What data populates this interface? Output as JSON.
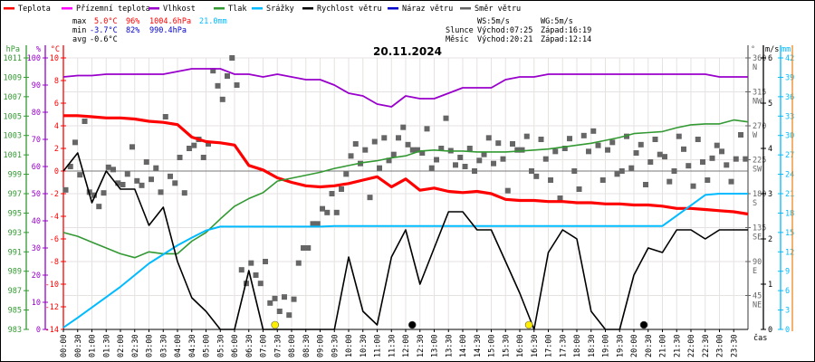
{
  "legend": [
    {
      "label": "Teplota",
      "color": "#ff0000"
    },
    {
      "label": "Přízemní teplota",
      "color": "#ff00ff"
    },
    {
      "label": "Vlhkost",
      "color": "#9900cc"
    },
    {
      "label": "Tlak",
      "color": "#339933"
    },
    {
      "label": "Srážky",
      "color": "#00bbff"
    },
    {
      "label": "Rychlost větru",
      "color": "#000000"
    },
    {
      "label": "Náraz větru",
      "color": "#0000cc"
    },
    {
      "label": "Směr větru",
      "color": "#666666"
    }
  ],
  "stats": {
    "max_label": "max",
    "max_temp": "5.0°C",
    "max_hum": "96%",
    "max_press": "1004.6hPa",
    "max_rain": "21.0mm",
    "min_label": "min",
    "min_temp": "-3.7°C",
    "min_hum": "82%",
    "min_press": "990.4hPa",
    "avg_label": "avg",
    "avg_temp": "-0.6°C"
  },
  "astro": {
    "ws": "WS:5m/s",
    "wg": "WG:5m/s",
    "sun_label": "Slunce",
    "sunrise": "Východ:07:25",
    "sunset": "Západ:16:19",
    "moon_label": "Měsíc",
    "moonrise": "Východ:20:21",
    "moonset": "Západ:12:14"
  },
  "chart_data": {
    "type": "line",
    "title": "20.11.2024",
    "xlabel": "čas",
    "x_ticks": [
      "00:00",
      "00:30",
      "01:00",
      "01:30",
      "02:00",
      "02:30",
      "03:00",
      "03:30",
      "04:00",
      "04:30",
      "05:00",
      "05:30",
      "06:00",
      "06:30",
      "07:00",
      "07:30",
      "08:00",
      "08:30",
      "09:00",
      "09:30",
      "10:00",
      "10:30",
      "11:00",
      "11:30",
      "12:00",
      "12:30",
      "13:00",
      "13:30",
      "14:00",
      "14:30",
      "15:00",
      "15:30",
      "16:00",
      "16:30",
      "17:00",
      "17:30",
      "18:00",
      "18:30",
      "19:00",
      "19:30",
      "20:00",
      "20:30",
      "21:00",
      "21:30",
      "22:00",
      "22:30",
      "23:00",
      "23:30"
    ],
    "axes": {
      "pressure": {
        "unit": "hPa",
        "range": [
          983,
          1011
        ],
        "ticks": [
          1011,
          1009,
          1007,
          1005,
          1003,
          1001,
          999,
          997,
          995,
          993,
          991,
          989,
          987,
          985,
          983
        ]
      },
      "humidity": {
        "unit": "%",
        "range": [
          0,
          100
        ],
        "ticks": [
          100,
          90,
          80,
          70,
          60,
          50,
          40,
          30,
          20,
          10,
          0
        ]
      },
      "temperature": {
        "unit": "°C",
        "range": [
          -14,
          10
        ],
        "ticks": [
          10,
          8,
          6,
          4,
          2,
          0,
          -2,
          -4,
          -6,
          -8,
          -10,
          -12,
          -14
        ]
      },
      "direction": {
        "unit": "°",
        "range": [
          0,
          360
        ],
        "ticks": [
          {
            "v": 360,
            "l": "N"
          },
          {
            "v": 315,
            "l": "NW"
          },
          {
            "v": 270,
            "l": "W"
          },
          {
            "v": 225,
            "l": "SW"
          },
          {
            "v": 180,
            "l": "S"
          },
          {
            "v": 135,
            "l": "SE"
          },
          {
            "v": 90,
            "l": "E"
          },
          {
            "v": 45,
            "l": "NE"
          }
        ]
      },
      "wind": {
        "unit": "m/s",
        "range": [
          0,
          6
        ],
        "ticks": [
          6,
          5,
          4,
          3,
          2,
          1,
          0
        ]
      },
      "rain": {
        "unit": "mm",
        "range": [
          0,
          42
        ],
        "ticks": [
          42,
          39,
          36,
          33,
          30,
          27,
          24,
          21,
          18,
          15,
          12,
          9,
          6,
          3,
          0
        ]
      }
    },
    "x_hours": [
      0,
      0.5,
      1,
      1.5,
      2,
      2.5,
      3,
      3.5,
      4,
      4.5,
      5,
      5.5,
      6,
      6.5,
      7,
      7.5,
      8,
      8.5,
      9,
      9.5,
      10,
      10.5,
      11,
      11.5,
      12,
      12.5,
      13,
      13.5,
      14,
      14.5,
      15,
      15.5,
      16,
      16.5,
      17,
      17.5,
      18,
      18.5,
      19,
      19.5,
      20,
      20.5,
      21,
      21.5,
      22,
      22.5,
      23,
      23.5,
      24
    ],
    "series": [
      {
        "name": "Teplota",
        "axis": "temperature",
        "color": "#ff0000",
        "values": [
          4.9,
          4.9,
          4.8,
          4.7,
          4.7,
          4.6,
          4.4,
          4.3,
          4.1,
          3.0,
          2.6,
          2.5,
          2.3,
          0.5,
          0.1,
          -0.6,
          -1.0,
          -1.3,
          -1.4,
          -1.3,
          -1.1,
          -0.8,
          -0.5,
          -1.4,
          -0.7,
          -1.7,
          -1.5,
          -1.8,
          -1.9,
          -1.8,
          -2.0,
          -2.5,
          -2.6,
          -2.6,
          -2.7,
          -2.7,
          -2.8,
          -2.8,
          -2.9,
          -2.9,
          -3.0,
          -3.0,
          -3.1,
          -3.3,
          -3.3,
          -3.4,
          -3.5,
          -3.6,
          -3.8
        ]
      },
      {
        "name": "Vlhkost",
        "axis": "humidity",
        "color": "#9900cc",
        "values": [
          93,
          93.5,
          93.5,
          94,
          94,
          94,
          94,
          94,
          95,
          96,
          96,
          96,
          94,
          94,
          93,
          94,
          93,
          92,
          92,
          90,
          87,
          86,
          83,
          82,
          86,
          85,
          85,
          87,
          89,
          89,
          89,
          92,
          93,
          93,
          94,
          94,
          94,
          94,
          94,
          94,
          94,
          94,
          94,
          94,
          94,
          94,
          93,
          93,
          93
        ]
      },
      {
        "name": "Tlak",
        "axis": "pressure",
        "color": "#339933",
        "values": [
          993.0,
          992.6,
          992.0,
          991.4,
          990.8,
          990.4,
          991.0,
          990.8,
          990.8,
          992.1,
          993.0,
          994.4,
          995.7,
          996.5,
          997.1,
          998.3,
          998.6,
          998.9,
          999.2,
          999.6,
          999.9,
          1000.2,
          1000.4,
          1000.7,
          1000.9,
          1001.4,
          1001.5,
          1001.4,
          1001.4,
          1001.3,
          1001.3,
          1001.3,
          1001.4,
          1001.5,
          1001.6,
          1001.8,
          1002.0,
          1002.2,
          1002.5,
          1002.8,
          1003.2,
          1003.3,
          1003.4,
          1003.8,
          1004.1,
          1004.2,
          1004.2,
          1004.6,
          1004.4
        ]
      },
      {
        "name": "Srážky",
        "axis": "rain",
        "color": "#00bbff",
        "values": [
          0.3,
          1.8,
          3.4,
          5.0,
          6.6,
          8.4,
          10.2,
          11.6,
          13.0,
          14.2,
          15.3,
          15.9,
          15.9,
          15.9,
          15.9,
          15.9,
          15.9,
          15.9,
          15.9,
          16.0,
          16.0,
          16.0,
          16.0,
          16.0,
          16.0,
          16.0,
          16.0,
          16.0,
          16.0,
          16.0,
          16.0,
          16.0,
          16.0,
          16.0,
          16.0,
          16.0,
          16.0,
          16.0,
          16.0,
          16.0,
          16.0,
          16.0,
          16.0,
          17.6,
          19.2,
          20.8,
          21.0,
          21.0,
          21.0
        ]
      },
      {
        "name": "Rychlost větru",
        "axis": "wind",
        "color": "#000000",
        "values": [
          3.5,
          3.9,
          2.8,
          3.5,
          3.1,
          3.1,
          2.3,
          2.7,
          1.5,
          0.7,
          0.4,
          0,
          0,
          1.3,
          0,
          0,
          0,
          0,
          0,
          0,
          1.6,
          0.4,
          0.1,
          1.6,
          2.2,
          1.0,
          1.8,
          2.6,
          2.6,
          2.2,
          2.2,
          1.5,
          0.8,
          0,
          1.7,
          2.2,
          2.0,
          0.4,
          0,
          0,
          1.2,
          1.8,
          1.7,
          2.2,
          2.2,
          2.0,
          2.2,
          2.2,
          2.2
        ]
      }
    ],
    "wind_direction": {
      "name": "Směr větru",
      "axis": "direction",
      "color": "#666666",
      "interval_minutes": 10,
      "values": [
        185,
        216,
        248,
        205,
        276,
        182,
        178,
        163,
        181,
        215,
        212,
        194,
        192,
        206,
        242,
        197,
        191,
        222,
        199,
        214,
        182,
        282,
        203,
        194,
        228,
        181,
        240,
        244,
        252,
        228,
        246,
        343,
        323,
        305,
        336,
        360,
        324,
        79,
        61,
        88,
        72,
        61,
        90,
        35,
        41,
        24,
        43,
        19,
        40,
        88,
        108,
        108,
        140,
        140,
        160,
        155,
        180,
        155,
        186,
        206,
        230,
        246,
        220,
        238,
        175,
        249,
        214,
        254,
        224,
        232,
        254,
        268,
        245,
        238,
        238,
        234,
        266,
        214,
        225,
        240,
        280,
        237,
        218,
        228,
        216,
        240,
        210,
        224,
        232,
        254,
        220,
        247,
        226,
        184,
        246,
        238,
        238,
        256,
        210,
        203,
        252,
        226,
        198,
        236,
        174,
        240,
        253,
        210,
        186,
        257,
        236,
        263,
        244,
        198,
        238,
        248,
        206,
        210,
        256,
        214,
        234,
        245,
        192,
        222,
        252,
        232,
        229,
        196,
        210,
        256,
        239,
        217,
        190,
        252,
        222,
        198,
        227,
        244,
        236,
        218,
        196,
        226,
        258,
        226
      ]
    },
    "markers": [
      {
        "name": "sunrise",
        "hour": 7.42,
        "color": "#ffee00"
      },
      {
        "name": "moonset",
        "hour": 12.23,
        "color": "#000000"
      },
      {
        "name": "sunset",
        "hour": 16.32,
        "color": "#ffee00"
      },
      {
        "name": "moonrise",
        "hour": 20.35,
        "color": "#000000"
      }
    ],
    "grid": true,
    "legend_position": "top"
  }
}
